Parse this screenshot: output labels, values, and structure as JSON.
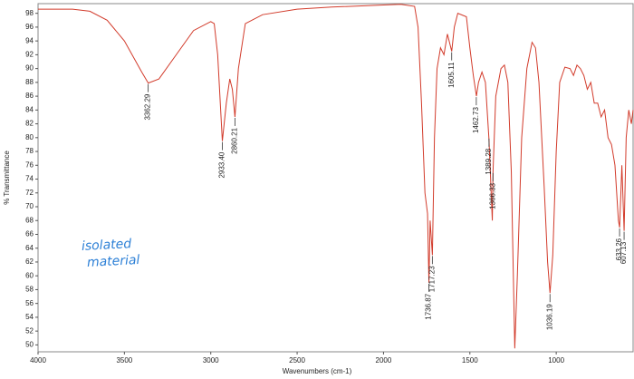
{
  "chart_data": {
    "type": "line",
    "xlabel": "Wavenumbers (cm-1)",
    "ylabel": "% Transmittance",
    "note": [
      "isolated",
      "material"
    ],
    "color": "#d23b2b",
    "xlim": [
      4000,
      555
    ],
    "ylim": [
      49,
      99.4
    ],
    "xticks": [
      4000,
      3500,
      3000,
      2500,
      2000,
      1500,
      1000
    ],
    "yticks": [
      50,
      52,
      54,
      56,
      58,
      60,
      62,
      64,
      66,
      68,
      70,
      72,
      74,
      76,
      78,
      80,
      82,
      84,
      86,
      88,
      90,
      92,
      94,
      96,
      98
    ],
    "x": [
      4000,
      3800,
      3700,
      3600,
      3500,
      3400,
      3362,
      3300,
      3200,
      3100,
      3000,
      2980,
      2960,
      2933,
      2910,
      2890,
      2875,
      2860,
      2840,
      2800,
      2700,
      2500,
      2300,
      2000,
      1900,
      1820,
      1800,
      1780,
      1760,
      1745,
      1737,
      1730,
      1717,
      1705,
      1690,
      1670,
      1650,
      1630,
      1605,
      1590,
      1570,
      1520,
      1500,
      1480,
      1462,
      1450,
      1430,
      1410,
      1390,
      1370,
      1366,
      1350,
      1320,
      1300,
      1280,
      1260,
      1240,
      1225,
      1200,
      1170,
      1140,
      1120,
      1100,
      1070,
      1050,
      1036,
      1020,
      1000,
      980,
      950,
      920,
      900,
      880,
      860,
      840,
      820,
      800,
      780,
      760,
      740,
      720,
      700,
      680,
      660,
      640,
      633,
      620,
      607,
      595,
      580,
      565,
      555
    ],
    "values": [
      98.6,
      98.6,
      98.3,
      97,
      94,
      89.5,
      87.9,
      88.5,
      92,
      95.5,
      96.8,
      96.5,
      92,
      79.5,
      85,
      88.5,
      87,
      83,
      90,
      96.5,
      97.8,
      98.6,
      98.9,
      99.2,
      99.3,
      99,
      96,
      85,
      72,
      69,
      59,
      68,
      63,
      80,
      90,
      93,
      92,
      95,
      92.5,
      96,
      98,
      97.5,
      93,
      89,
      86,
      88,
      89.5,
      88,
      80,
      68,
      75,
      86,
      90,
      90.5,
      88,
      75,
      49.5,
      60,
      80,
      90,
      93.8,
      93,
      88,
      73,
      62,
      57.5,
      63,
      78,
      88,
      90.2,
      90,
      89,
      90.5,
      90,
      89,
      87,
      88,
      85,
      85,
      83,
      84,
      80,
      79,
      76,
      68,
      67,
      76,
      66.5,
      80,
      84,
      82,
      84
    ],
    "annotations": [
      {
        "x": 3362.29,
        "y": 87.9,
        "label": "3362.29"
      },
      {
        "x": 2933.4,
        "y": 79.5,
        "label": "2933.40"
      },
      {
        "x": 2860.21,
        "y": 83,
        "label": "2860.21"
      },
      {
        "x": 1736.87,
        "y": 59,
        "label": "1736.87"
      },
      {
        "x": 1717.23,
        "y": 63,
        "label": "1717.23"
      },
      {
        "x": 1605.11,
        "y": 92.5,
        "label": "1605.11"
      },
      {
        "x": 1462.73,
        "y": 86,
        "label": "1462.73"
      },
      {
        "x": 1389.28,
        "y": 80,
        "label": "1389.28"
      },
      {
        "x": 1366.33,
        "y": 75,
        "label": "1366.33"
      },
      {
        "x": 1036.19,
        "y": 57.5,
        "label": "1036.19"
      },
      {
        "x": 633.26,
        "y": 67,
        "label": "633.26"
      },
      {
        "x": 607.13,
        "y": 66.5,
        "label": "607.13"
      }
    ]
  }
}
